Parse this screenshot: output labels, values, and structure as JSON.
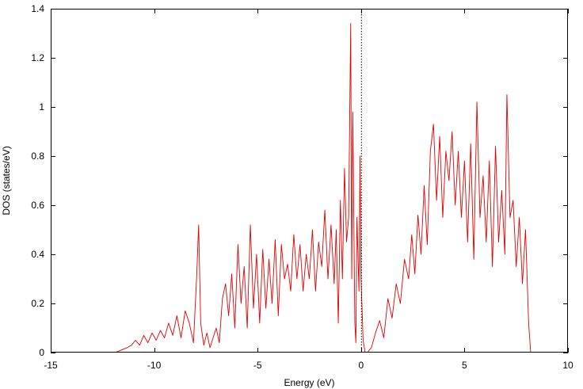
{
  "chart_data": {
    "type": "line",
    "title": "",
    "xlabel": "Energy (eV)",
    "ylabel": "DOS (states/eV)",
    "xlim": [
      -15,
      10
    ],
    "ylim": [
      0,
      1.4
    ],
    "xticks": [
      -15,
      -10,
      -5,
      0,
      5,
      10
    ],
    "xtick_labels": [
      "-15",
      "-10",
      "-5",
      "0",
      "5",
      "10"
    ],
    "yticks": [
      0,
      0.2,
      0.4,
      0.6,
      0.8,
      1.0,
      1.2,
      1.4
    ],
    "ytick_labels": [
      "0",
      "0.2",
      "0.4",
      "0.6",
      "0.8",
      "1",
      "1.2",
      "1.4"
    ],
    "grid": false,
    "fermi_level": 0,
    "series": [
      {
        "color": "#e00000",
        "x": [
          -11.9,
          -11.6,
          -11.3,
          -11.1,
          -10.9,
          -10.7,
          -10.5,
          -10.3,
          -10.1,
          -9.9,
          -9.7,
          -9.5,
          -9.3,
          -9.1,
          -8.9,
          -8.7,
          -8.5,
          -8.3,
          -8.1,
          -7.95,
          -7.85,
          -7.75,
          -7.6,
          -7.45,
          -7.3,
          -7.15,
          -7.0,
          -6.85,
          -6.7,
          -6.55,
          -6.4,
          -6.25,
          -6.1,
          -5.95,
          -5.8,
          -5.65,
          -5.5,
          -5.35,
          -5.2,
          -5.05,
          -4.9,
          -4.75,
          -4.6,
          -4.45,
          -4.3,
          -4.15,
          -4.0,
          -3.85,
          -3.7,
          -3.55,
          -3.4,
          -3.25,
          -3.1,
          -2.95,
          -2.8,
          -2.65,
          -2.5,
          -2.35,
          -2.2,
          -2.05,
          -1.9,
          -1.75,
          -1.6,
          -1.45,
          -1.3,
          -1.2,
          -1.1,
          -1.0,
          -0.9,
          -0.8,
          -0.7,
          -0.6,
          -0.5,
          -0.45,
          -0.4,
          -0.3,
          -0.25,
          -0.2,
          -0.1,
          -0.05,
          0.0,
          0.1,
          0.2,
          0.3,
          0.5,
          0.7,
          0.9,
          1.1,
          1.3,
          1.5,
          1.7,
          1.9,
          2.1,
          2.3,
          2.45,
          2.6,
          2.75,
          2.9,
          3.05,
          3.2,
          3.35,
          3.5,
          3.65,
          3.8,
          3.95,
          4.1,
          4.25,
          4.4,
          4.55,
          4.7,
          4.85,
          5.0,
          5.15,
          5.3,
          5.45,
          5.6,
          5.75,
          5.9,
          6.05,
          6.2,
          6.35,
          6.5,
          6.65,
          6.8,
          6.95,
          7.05,
          7.2,
          7.35,
          7.5,
          7.65,
          7.8,
          7.95,
          8.1,
          8.2
        ],
        "y": [
          0.0,
          0.01,
          0.02,
          0.03,
          0.05,
          0.03,
          0.07,
          0.04,
          0.08,
          0.05,
          0.09,
          0.06,
          0.12,
          0.07,
          0.15,
          0.06,
          0.17,
          0.12,
          0.04,
          0.3,
          0.52,
          0.12,
          0.03,
          0.08,
          0.02,
          0.06,
          0.1,
          0.04,
          0.22,
          0.28,
          0.15,
          0.32,
          0.1,
          0.44,
          0.2,
          0.35,
          0.1,
          0.52,
          0.18,
          0.4,
          0.12,
          0.42,
          0.18,
          0.38,
          0.2,
          0.46,
          0.15,
          0.44,
          0.3,
          0.36,
          0.25,
          0.48,
          0.3,
          0.44,
          0.25,
          0.4,
          0.3,
          0.5,
          0.25,
          0.45,
          0.35,
          0.58,
          0.3,
          0.52,
          0.28,
          0.5,
          0.12,
          0.62,
          0.3,
          0.75,
          0.45,
          0.55,
          1.34,
          0.3,
          0.98,
          0.12,
          0.04,
          0.55,
          0.25,
          0.8,
          0.3,
          0.05,
          0.0,
          0.0,
          0.02,
          0.08,
          0.13,
          0.06,
          0.22,
          0.14,
          0.28,
          0.2,
          0.38,
          0.3,
          0.48,
          0.32,
          0.56,
          0.4,
          0.68,
          0.44,
          0.82,
          0.93,
          0.62,
          0.88,
          0.55,
          0.82,
          0.7,
          0.9,
          0.6,
          0.82,
          0.55,
          0.78,
          0.45,
          0.85,
          0.38,
          1.02,
          0.55,
          0.72,
          0.45,
          0.78,
          0.35,
          0.84,
          0.45,
          0.66,
          0.4,
          1.05,
          0.55,
          0.62,
          0.35,
          0.55,
          0.28,
          0.5,
          0.12,
          0.0
        ]
      }
    ]
  }
}
